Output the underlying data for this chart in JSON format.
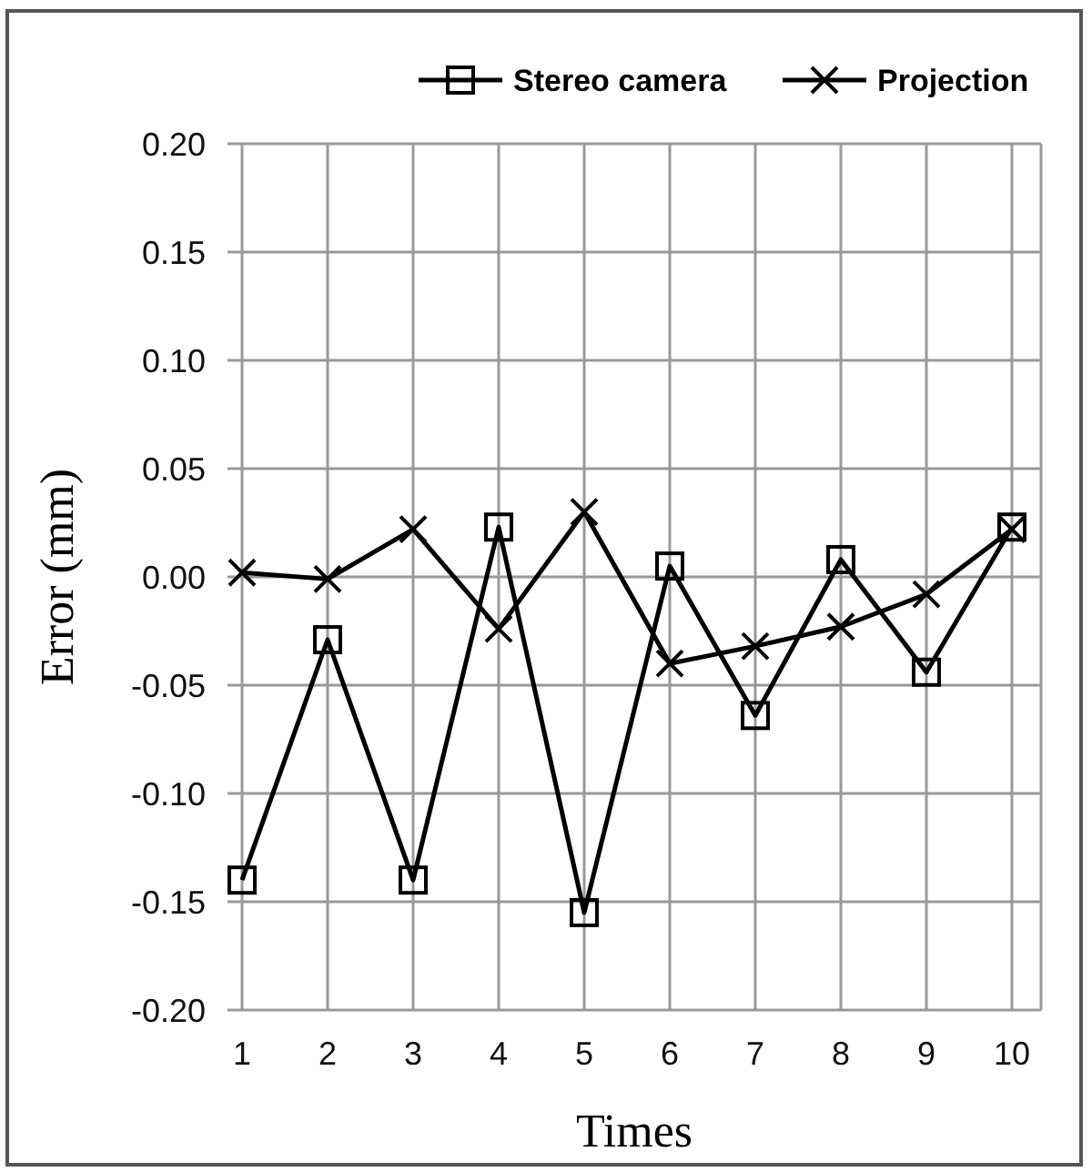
{
  "chart_data": {
    "type": "line",
    "xlabel": "Times",
    "ylabel": "Error (mm)",
    "categories": [
      "1",
      "2",
      "3",
      "4",
      "5",
      "6",
      "7",
      "8",
      "9",
      "10"
    ],
    "series": [
      {
        "name": "Stereo camera",
        "color": "#000000",
        "marker": "square",
        "values": [
          -0.14,
          -0.029,
          -0.14,
          0.023,
          -0.155,
          0.005,
          -0.064,
          0.008,
          -0.044,
          0.023
        ]
      },
      {
        "name": "Projection",
        "color": "#000000",
        "marker": "cross",
        "values": [
          0.002,
          -0.001,
          0.022,
          -0.024,
          0.03,
          -0.04,
          -0.032,
          -0.023,
          -0.008,
          0.022
        ]
      }
    ],
    "ylim": [
      -0.2,
      0.2
    ],
    "yticks": [
      {
        "value": -0.2,
        "label": "-0.20"
      },
      {
        "value": -0.15,
        "label": "-0.15"
      },
      {
        "value": -0.1,
        "label": "-0.10"
      },
      {
        "value": -0.05,
        "label": "-0.05"
      },
      {
        "value": 0,
        "label": "0.00"
      },
      {
        "value": 0.05,
        "label": "0.05"
      },
      {
        "value": 0.1,
        "label": "0.10"
      },
      {
        "value": 0.15,
        "label": "0.15"
      },
      {
        "value": 0.2,
        "label": "0.20"
      }
    ],
    "grid": true,
    "legend": "top right",
    "line_style": "solid"
  }
}
